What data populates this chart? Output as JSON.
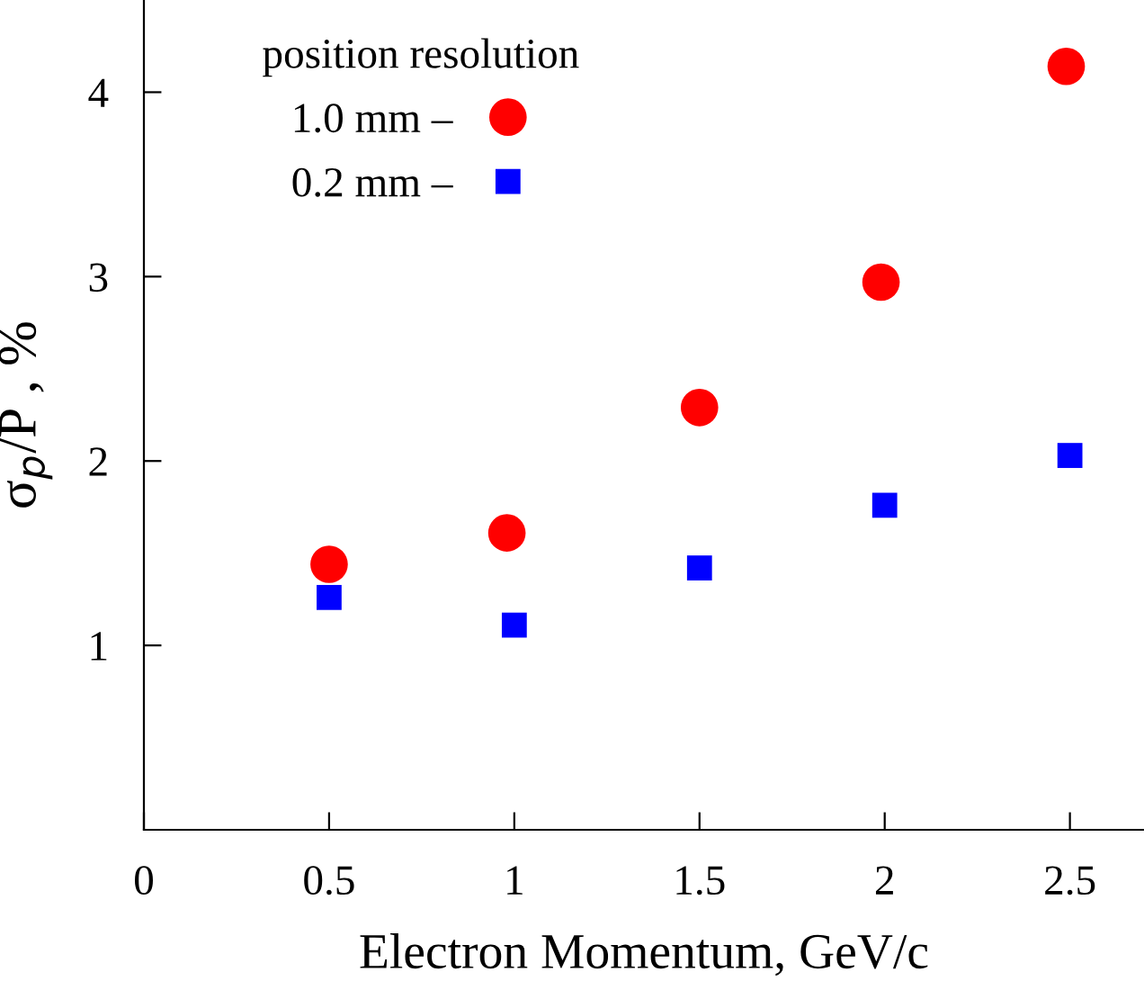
{
  "chart_data": {
    "type": "scatter",
    "xlabel": "Electron Momentum, GeV/c",
    "ylabel": "σ$_{p}$/P , %",
    "legend_title": "position resolution",
    "legend": "top left",
    "xlim": [
      0,
      2.7
    ],
    "ylim": [
      0,
      4.5
    ],
    "xticks": [
      0,
      0.5,
      1,
      1.5,
      2,
      2.5
    ],
    "yticks": [
      1,
      2,
      3,
      4
    ],
    "grid": false,
    "series": [
      {
        "name": "1.0 mm –",
        "color": "#ff0000",
        "marker": "circle",
        "x": [
          0.5,
          0.98,
          1.5,
          1.99,
          2.49
        ],
        "values": [
          1.44,
          1.61,
          2.29,
          2.97,
          4.14
        ]
      },
      {
        "name": "0.2 mm –",
        "color": "#0000ff",
        "marker": "square",
        "x": [
          0.5,
          1.0,
          1.5,
          2.0,
          2.5
        ],
        "values": [
          1.26,
          1.11,
          1.42,
          1.76,
          2.03
        ]
      }
    ]
  }
}
